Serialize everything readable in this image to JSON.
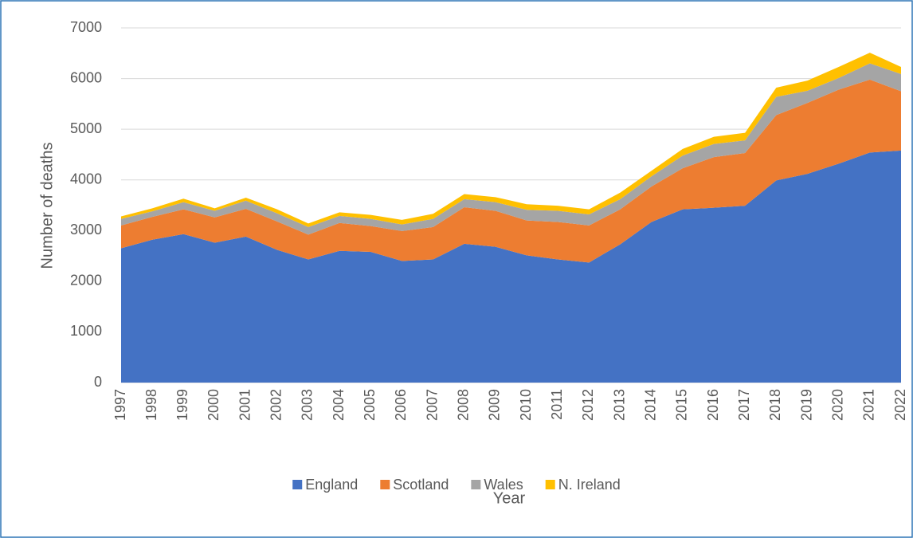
{
  "chart_data": {
    "type": "area",
    "stacked": true,
    "x_label": "Year",
    "y_label": "Number of deaths",
    "categories": [
      "1997",
      "1998",
      "1999",
      "2000",
      "2001",
      "2002",
      "2003",
      "2004",
      "2005",
      "2006",
      "2007",
      "2008",
      "2009",
      "2010",
      "2011",
      "2012",
      "2013",
      "2014",
      "2015",
      "2016",
      "2017",
      "2018",
      "2019",
      "2020",
      "2021",
      "2022"
    ],
    "series": [
      {
        "name": "England",
        "color": "#4472c4",
        "values": [
          2650,
          2820,
          2930,
          2760,
          2880,
          2620,
          2430,
          2600,
          2580,
          2400,
          2430,
          2740,
          2680,
          2510,
          2430,
          2370,
          2730,
          3170,
          3420,
          3450,
          3490,
          3990,
          4120,
          4320,
          4540,
          4580
        ]
      },
      {
        "name": "Scotland",
        "color": "#ed7d31",
        "values": [
          450,
          450,
          490,
          500,
          550,
          560,
          490,
          550,
          510,
          590,
          640,
          720,
          710,
          690,
          740,
          730,
          690,
          700,
          810,
          1000,
          1040,
          1290,
          1400,
          1460,
          1440,
          1170
        ]
      },
      {
        "name": "Wales",
        "color": "#a5a5a5",
        "values": [
          130,
          110,
          140,
          130,
          160,
          160,
          150,
          140,
          140,
          130,
          160,
          160,
          170,
          210,
          220,
          220,
          200,
          200,
          250,
          260,
          250,
          360,
          240,
          230,
          320,
          340
        ]
      },
      {
        "name": "N. Ireland",
        "color": "#ffc000",
        "values": [
          50,
          60,
          70,
          50,
          60,
          80,
          70,
          70,
          80,
          90,
          100,
          100,
          100,
          110,
          100,
          100,
          130,
          110,
          130,
          140,
          150,
          180,
          200,
          220,
          210,
          140
        ]
      }
    ],
    "ylim": [
      0,
      7000
    ],
    "yticks": [
      0,
      1000,
      2000,
      3000,
      4000,
      5000,
      6000,
      7000
    ],
    "grid": true,
    "legend": "bottom"
  }
}
